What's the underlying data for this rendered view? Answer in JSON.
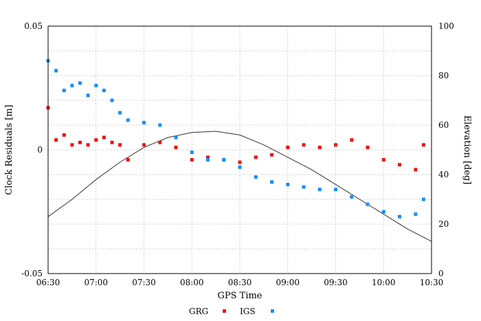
{
  "chart_data": {
    "type": "scatter",
    "xlabel": "GPS Time",
    "ylabel": "Clock Residuals [m]",
    "y2label": "Elevation [deg]",
    "x_range": [
      "06:30",
      "10:30"
    ],
    "x_ticks": [
      "06:30",
      "07:00",
      "07:30",
      "08:00",
      "08:30",
      "09:00",
      "09:30",
      "10:00",
      "10:30"
    ],
    "ylim": [
      -0.05,
      0.05
    ],
    "y_ticks": [
      "-0.05",
      "0",
      "0.05"
    ],
    "y2lim": [
      0,
      100
    ],
    "y2_ticks": [
      "0",
      "20",
      "40",
      "60",
      "80",
      "100"
    ],
    "grid": true,
    "legend_position": "bottom-center",
    "legend": [
      "GRG",
      "IGS"
    ],
    "colors": {
      "GRG": "#ee1111",
      "IGS": "#1a8cff",
      "elevation": "#303030"
    },
    "series": [
      {
        "name": "GRG",
        "marker": "square",
        "color": "#ee1111",
        "x": [
          "06:30",
          "06:35",
          "06:40",
          "06:45",
          "06:50",
          "06:55",
          "07:00",
          "07:05",
          "07:10",
          "07:15",
          "07:20",
          "07:30",
          "07:40",
          "07:50",
          "08:00",
          "08:10",
          "08:20",
          "08:30",
          "08:40",
          "08:50",
          "09:00",
          "09:10",
          "09:20",
          "09:30",
          "09:40",
          "09:50",
          "10:00",
          "10:10",
          "10:20",
          "10:25"
        ],
        "y": [
          0.017,
          0.004,
          0.006,
          0.002,
          0.003,
          0.002,
          0.004,
          0.005,
          0.003,
          0.002,
          -0.004,
          0.002,
          0.003,
          0.001,
          -0.004,
          -0.003,
          -0.004,
          -0.005,
          -0.003,
          -0.002,
          0.001,
          0.002,
          0.001,
          0.002,
          0.004,
          0.001,
          -0.004,
          -0.006,
          -0.008,
          0.002
        ]
      },
      {
        "name": "IGS",
        "marker": "square",
        "color": "#1a8cff",
        "x": [
          "06:30",
          "06:35",
          "06:40",
          "06:45",
          "06:50",
          "06:55",
          "07:00",
          "07:05",
          "07:10",
          "07:15",
          "07:20",
          "07:30",
          "07:40",
          "07:50",
          "08:00",
          "08:10",
          "08:20",
          "08:30",
          "08:40",
          "08:50",
          "09:00",
          "09:10",
          "09:20",
          "09:30",
          "09:40",
          "09:50",
          "10:00",
          "10:10",
          "10:20",
          "10:25"
        ],
        "y": [
          0.036,
          0.032,
          0.024,
          0.026,
          0.027,
          0.022,
          0.026,
          0.024,
          0.02,
          0.015,
          0.012,
          0.011,
          0.01,
          0.005,
          -0.001,
          -0.004,
          -0.004,
          -0.007,
          -0.011,
          -0.013,
          -0.014,
          -0.015,
          -0.016,
          -0.016,
          -0.019,
          -0.022,
          -0.025,
          -0.027,
          -0.026,
          -0.02
        ]
      },
      {
        "name": "Elevation",
        "axis": "right",
        "type": "line",
        "color": "#303030",
        "x": [
          "06:30",
          "06:45",
          "07:00",
          "07:15",
          "07:30",
          "07:45",
          "08:00",
          "08:15",
          "08:30",
          "08:45",
          "09:00",
          "09:15",
          "09:30",
          "09:45",
          "10:00",
          "10:15",
          "10:30"
        ],
        "y": [
          23,
          30,
          38,
          45,
          51,
          55,
          57,
          57.5,
          56,
          52,
          47,
          42,
          36,
          30,
          24,
          18,
          13
        ]
      }
    ]
  }
}
